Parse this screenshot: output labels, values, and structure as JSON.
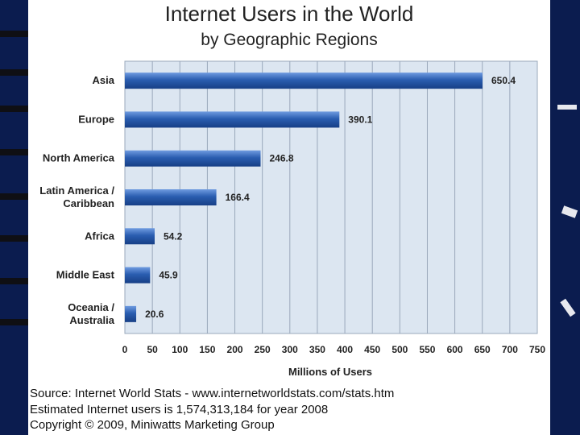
{
  "chart_data": {
    "type": "bar",
    "orientation": "horizontal",
    "title": "Internet Users in the World",
    "subtitle": "by Geographic Regions",
    "categories": [
      "Asia",
      "Europe",
      "North America",
      "Latin America / Caribbean",
      "Africa",
      "Middle East",
      "Oceania / Australia"
    ],
    "category_lines": [
      [
        "Asia"
      ],
      [
        "Europe"
      ],
      [
        "North America"
      ],
      [
        "Latin America /",
        "Caribbean"
      ],
      [
        "Africa"
      ],
      [
        "Middle East"
      ],
      [
        "Oceania  /",
        "Australia"
      ]
    ],
    "values": [
      650.4,
      390.1,
      246.8,
      166.4,
      54.2,
      45.9,
      20.6
    ],
    "value_labels": [
      "650.4",
      "390.1",
      "246.8",
      "166.4",
      "54.2",
      "45.9",
      "20.6"
    ],
    "xlabel": "Millions of Users",
    "ylabel": "",
    "xlim": [
      0,
      750
    ],
    "x_ticks": [
      0,
      50,
      100,
      150,
      200,
      250,
      300,
      350,
      400,
      450,
      500,
      550,
      600,
      650,
      700,
      750
    ],
    "grid": true,
    "bar_color": "#2a5db0",
    "plot_bg": "#dce6f1"
  },
  "source_lines": [
    "Source: Internet World Stats - www.internetworldstats.com/stats.htm",
    "Estimated Internet users is 1,574,313,184 for year 2008",
    "Copyright © 2009, Miniwatts Marketing Group"
  ]
}
